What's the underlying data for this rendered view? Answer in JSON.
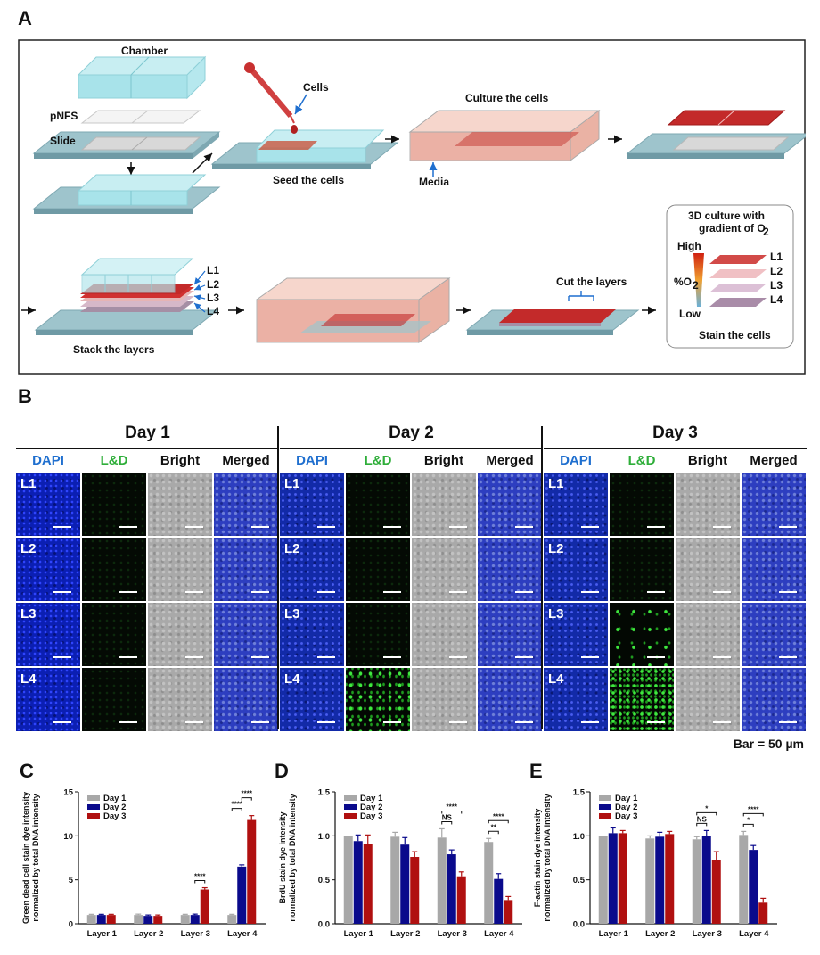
{
  "panels": {
    "A": "A",
    "B": "B",
    "C": "C",
    "D": "D",
    "E": "E"
  },
  "schematic": {
    "chamber": "Chamber",
    "pnfs": "pNFS",
    "slide": "Slide",
    "cells": "Cells",
    "seed": "Seed the cells",
    "culture": "Culture the cells",
    "media": "Media",
    "stack": "Stack the layers",
    "cut": "Cut the layers",
    "layers": [
      "L1",
      "L2",
      "L3",
      "L4"
    ],
    "gradient_title_1": "3D culture with",
    "gradient_title_2": "gradient of O",
    "gradient_sub": "2",
    "high": "High",
    "low": "Low",
    "o2": "%O",
    "o2_sub": "2",
    "stain": "Stain the cells"
  },
  "microscopy": {
    "days": [
      "Day 1",
      "Day 2",
      "Day 3"
    ],
    "channels": [
      "DAPI",
      "L&D",
      "Bright",
      "Merged"
    ],
    "channel_colors": [
      "#1f6fcf",
      "#2fae3a",
      "#111111",
      "#111111"
    ],
    "layers": [
      "L1",
      "L2",
      "L3",
      "L4"
    ],
    "scale": "Bar = 50 µm"
  },
  "chart_data": [
    {
      "type": "bar",
      "panel": "C",
      "ylabel": "Green dead cell stain dye intensity\nnormalized by total DNA intensity",
      "categories": [
        "Layer 1",
        "Layer 2",
        "Layer 3",
        "Layer 4"
      ],
      "ylim": [
        0,
        15
      ],
      "yticks": [
        0,
        5,
        10,
        15
      ],
      "series": [
        {
          "name": "Day 1",
          "color": "#a8a8a8",
          "values": [
            1.0,
            1.0,
            1.0,
            1.0
          ],
          "errors": [
            0.08,
            0.1,
            0.08,
            0.08
          ]
        },
        {
          "name": "Day 2",
          "color": "#0a0a8c",
          "values": [
            1.0,
            0.9,
            1.0,
            6.5
          ],
          "errors": [
            0.08,
            0.1,
            0.1,
            0.2
          ]
        },
        {
          "name": "Day 3",
          "color": "#b01010",
          "values": [
            1.0,
            0.9,
            3.9,
            11.8
          ],
          "errors": [
            0.08,
            0.1,
            0.2,
            0.5
          ]
        }
      ],
      "significance": [
        {
          "layer": 2,
          "from": 1,
          "to": 2,
          "label": "****"
        },
        {
          "layer": 3,
          "from": 0,
          "to": 1,
          "label": "****"
        },
        {
          "layer": 3,
          "from": 1,
          "to": 2,
          "label": "****"
        }
      ]
    },
    {
      "type": "bar",
      "panel": "D",
      "ylabel": "BrdU stain dye intensity\nnormalized by total DNA intensity",
      "categories": [
        "Layer 1",
        "Layer 2",
        "Layer 3",
        "Layer 4"
      ],
      "ylim": [
        0,
        1.5
      ],
      "yticks": [
        0.0,
        0.5,
        1.0,
        1.5
      ],
      "series": [
        {
          "name": "Day 1",
          "color": "#a8a8a8",
          "values": [
            1.0,
            0.99,
            0.98,
            0.93
          ],
          "errors": [
            0.0,
            0.05,
            0.1,
            0.04
          ]
        },
        {
          "name": "Day 2",
          "color": "#0a0a8c",
          "values": [
            0.94,
            0.9,
            0.79,
            0.51
          ],
          "errors": [
            0.07,
            0.08,
            0.05,
            0.06
          ]
        },
        {
          "name": "Day 3",
          "color": "#b01010",
          "values": [
            0.91,
            0.76,
            0.54,
            0.27
          ],
          "errors": [
            0.1,
            0.06,
            0.05,
            0.04
          ]
        }
      ],
      "significance": [
        {
          "layer": 2,
          "from": 0,
          "to": 1,
          "label": "NS"
        },
        {
          "layer": 2,
          "from": 0,
          "to": 2,
          "label": "****"
        },
        {
          "layer": 3,
          "from": 0,
          "to": 1,
          "label": "**"
        },
        {
          "layer": 3,
          "from": 0,
          "to": 2,
          "label": "****"
        }
      ]
    },
    {
      "type": "bar",
      "panel": "E",
      "ylabel": "F-actin stain dye intensity\nnormalized by total DNA intensity",
      "categories": [
        "Layer 1",
        "Layer 2",
        "Layer 3",
        "Layer 4"
      ],
      "ylim": [
        0,
        1.5
      ],
      "yticks": [
        0.0,
        0.5,
        1.0,
        1.5
      ],
      "series": [
        {
          "name": "Day 1",
          "color": "#a8a8a8",
          "values": [
            1.0,
            0.97,
            0.96,
            1.01
          ],
          "errors": [
            0.0,
            0.03,
            0.03,
            0.04
          ]
        },
        {
          "name": "Day 2",
          "color": "#0a0a8c",
          "values": [
            1.03,
            0.99,
            1.0,
            0.84
          ],
          "errors": [
            0.06,
            0.05,
            0.06,
            0.05
          ]
        },
        {
          "name": "Day 3",
          "color": "#b01010",
          "values": [
            1.03,
            1.02,
            0.72,
            0.24
          ],
          "errors": [
            0.03,
            0.03,
            0.1,
            0.05
          ]
        }
      ],
      "significance": [
        {
          "layer": 2,
          "from": 0,
          "to": 1,
          "label": "NS"
        },
        {
          "layer": 2,
          "from": 0,
          "to": 2,
          "label": "*"
        },
        {
          "layer": 3,
          "from": 0,
          "to": 1,
          "label": "*"
        },
        {
          "layer": 3,
          "from": 0,
          "to": 2,
          "label": "****"
        }
      ]
    }
  ]
}
